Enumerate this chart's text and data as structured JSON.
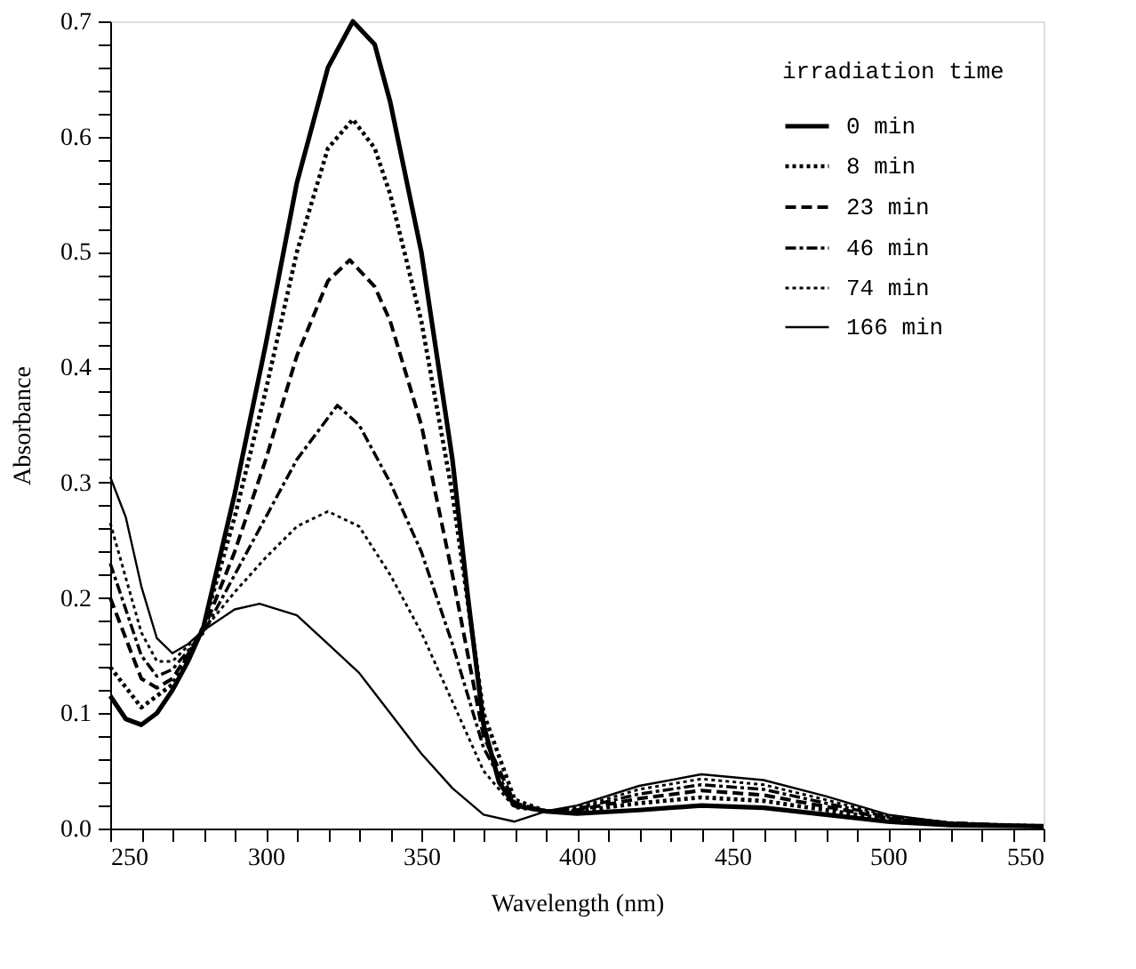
{
  "chart_data": {
    "type": "line",
    "xlabel": "Wavelength (nm)",
    "ylabel": "Absorbance",
    "legend_title": "irradiation time",
    "legend": "top right",
    "xlim": [
      250,
      550
    ],
    "ylim": [
      0,
      0.7
    ],
    "xticks": [
      250,
      {
        "value": 260,
        "label": null
      },
      {
        "value": 270,
        "label": null
      },
      {
        "value": 280,
        "label": null
      },
      {
        "value": 290,
        "label": null
      },
      300,
      {
        "value": 310,
        "label": null
      },
      {
        "value": 320,
        "label": null
      },
      {
        "value": 330,
        "label": null
      },
      {
        "value": 340,
        "label": null
      },
      350,
      {
        "value": 360,
        "label": null
      },
      {
        "value": 370,
        "label": null
      },
      {
        "value": 380,
        "label": null
      },
      {
        "value": 390,
        "label": null
      },
      400,
      {
        "value": 410,
        "label": null
      },
      {
        "value": 420,
        "label": null
      },
      {
        "value": 430,
        "label": null
      },
      {
        "value": 440,
        "label": null
      },
      450,
      {
        "value": 460,
        "label": null
      },
      {
        "value": 470,
        "label": null
      },
      {
        "value": 480,
        "label": null
      },
      {
        "value": 490,
        "label": null
      },
      500,
      {
        "value": 510,
        "label": null
      },
      {
        "value": 520,
        "label": null
      },
      {
        "value": 530,
        "label": null
      },
      {
        "value": 540,
        "label": null
      },
      550
    ],
    "yticks": [
      {
        "value": 0,
        "label": "0.0"
      },
      {
        "value": 0.02,
        "label": null
      },
      {
        "value": 0.04,
        "label": null
      },
      {
        "value": 0.06,
        "label": null
      },
      {
        "value": 0.08,
        "label": null
      },
      0.1,
      {
        "value": 0.12,
        "label": null
      },
      {
        "value": 0.14,
        "label": null
      },
      {
        "value": 0.16,
        "label": null
      },
      {
        "value": 0.18,
        "label": null
      },
      0.2,
      {
        "value": 0.22,
        "label": null
      },
      {
        "value": 0.24,
        "label": null
      },
      {
        "value": 0.26,
        "label": null
      },
      {
        "value": 0.28,
        "label": null
      },
      0.3,
      {
        "value": 0.32,
        "label": null
      },
      {
        "value": 0.34,
        "label": null
      },
      {
        "value": 0.36,
        "label": null
      },
      {
        "value": 0.38,
        "label": null
      },
      0.4,
      {
        "value": 0.42,
        "label": null
      },
      {
        "value": 0.44,
        "label": null
      },
      {
        "value": 0.46,
        "label": null
      },
      {
        "value": 0.48,
        "label": null
      },
      0.5,
      {
        "value": 0.52,
        "label": null
      },
      {
        "value": 0.54,
        "label": null
      },
      {
        "value": 0.56,
        "label": null
      },
      {
        "value": 0.58,
        "label": null
      },
      0.6,
      {
        "value": 0.62,
        "label": null
      },
      {
        "value": 0.64,
        "label": null
      },
      {
        "value": 0.66,
        "label": null
      },
      {
        "value": 0.68,
        "label": null
      },
      0.7
    ],
    "grid": false,
    "marker": "none",
    "series": [
      {
        "name": "0 min",
        "color": "#000000",
        "line_style": "solid",
        "x": [
          250,
          255,
          260,
          265,
          270,
          275,
          280,
          290,
          300,
          310,
          320,
          328,
          335,
          340,
          350,
          360,
          365,
          370,
          375,
          380,
          390,
          400,
          420,
          440,
          460,
          480,
          500,
          520,
          550
        ],
        "values": [
          0.115,
          0.095,
          0.09,
          0.1,
          0.12,
          0.145,
          0.175,
          0.29,
          0.42,
          0.56,
          0.66,
          0.7,
          0.68,
          0.63,
          0.5,
          0.32,
          0.2,
          0.09,
          0.04,
          0.02,
          0.015,
          0.013,
          0.016,
          0.02,
          0.018,
          0.012,
          0.006,
          0.003,
          0.002
        ]
      },
      {
        "name": "8 min",
        "color": "#000000",
        "line_style": "dotted",
        "x": [
          250,
          260,
          270,
          280,
          290,
          300,
          310,
          320,
          328,
          335,
          340,
          350,
          360,
          370,
          380,
          390,
          400,
          420,
          440,
          460,
          480,
          500,
          520,
          550
        ],
        "values": [
          0.14,
          0.105,
          0.125,
          0.175,
          0.27,
          0.38,
          0.5,
          0.59,
          0.615,
          0.59,
          0.55,
          0.44,
          0.29,
          0.1,
          0.025,
          0.015,
          0.015,
          0.022,
          0.027,
          0.024,
          0.016,
          0.008,
          0.004,
          0.002
        ]
      },
      {
        "name": "23 min",
        "color": "#000000",
        "line_style": "dashed",
        "x": [
          250,
          260,
          265,
          270,
          280,
          290,
          300,
          310,
          320,
          327,
          335,
          340,
          350,
          360,
          370,
          380,
          390,
          400,
          420,
          440,
          460,
          480,
          500,
          520,
          550
        ],
        "values": [
          0.2,
          0.13,
          0.122,
          0.13,
          0.172,
          0.24,
          0.32,
          0.41,
          0.475,
          0.493,
          0.47,
          0.44,
          0.35,
          0.22,
          0.08,
          0.022,
          0.015,
          0.016,
          0.026,
          0.033,
          0.029,
          0.019,
          0.009,
          0.004,
          0.002
        ]
      },
      {
        "name": "46 min",
        "color": "#000000",
        "line_style": "dashdot",
        "x": [
          250,
          260,
          265,
          270,
          280,
          290,
          300,
          310,
          323,
          330,
          340,
          350,
          360,
          370,
          380,
          390,
          400,
          420,
          440,
          460,
          480,
          500,
          520,
          550
        ],
        "values": [
          0.23,
          0.15,
          0.132,
          0.138,
          0.17,
          0.22,
          0.27,
          0.32,
          0.367,
          0.35,
          0.3,
          0.24,
          0.16,
          0.07,
          0.02,
          0.015,
          0.017,
          0.03,
          0.038,
          0.034,
          0.022,
          0.01,
          0.005,
          0.002
        ]
      },
      {
        "name": "74 min",
        "color": "#000000",
        "line_style": "dotted",
        "x": [
          250,
          260,
          265,
          270,
          280,
          290,
          300,
          310,
          320,
          330,
          340,
          350,
          360,
          370,
          380,
          390,
          400,
          420,
          440,
          460,
          480,
          500,
          520,
          550
        ],
        "values": [
          0.265,
          0.17,
          0.145,
          0.145,
          0.172,
          0.205,
          0.235,
          0.262,
          0.275,
          0.262,
          0.22,
          0.17,
          0.11,
          0.05,
          0.018,
          0.015,
          0.018,
          0.034,
          0.043,
          0.038,
          0.025,
          0.011,
          0.005,
          0.002
        ]
      },
      {
        "name": "166 min",
        "color": "#000000",
        "line_style": "solid",
        "x": [
          250,
          255,
          260,
          265,
          270,
          275,
          280,
          290,
          298,
          310,
          320,
          330,
          340,
          350,
          360,
          370,
          380,
          390,
          400,
          420,
          440,
          460,
          480,
          500,
          520,
          550
        ],
        "values": [
          0.305,
          0.27,
          0.21,
          0.165,
          0.152,
          0.16,
          0.172,
          0.19,
          0.195,
          0.185,
          0.16,
          0.135,
          0.1,
          0.065,
          0.035,
          0.012,
          0.006,
          0.015,
          0.02,
          0.037,
          0.047,
          0.042,
          0.028,
          0.012,
          0.005,
          0.002
        ]
      }
    ]
  }
}
